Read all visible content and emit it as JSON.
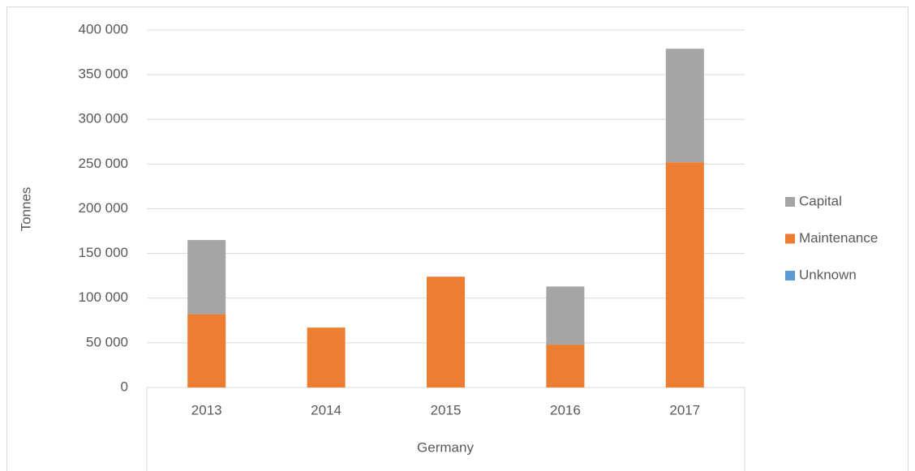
{
  "chart_data": {
    "type": "stacked_bar",
    "y_label": "Tonnes",
    "x_label": "Germany",
    "categories": [
      "2013",
      "2014",
      "2015",
      "2016",
      "2017"
    ],
    "series": [
      {
        "name": "Capital",
        "color": "#a5a5a5",
        "values": [
          83000,
          0,
          0,
          65000,
          127000
        ]
      },
      {
        "name": "Maintenance",
        "color": "#ed7d31",
        "values": [
          82000,
          67000,
          124000,
          48000,
          252000
        ]
      },
      {
        "name": "Unknown",
        "color": "#5b9bd5",
        "values": [
          0,
          0,
          0,
          0,
          0
        ]
      }
    ],
    "ylim": [
      0,
      400000
    ],
    "yticks": [
      0,
      {
        "value": 50000,
        "label": "50 000"
      },
      {
        "value": 100000,
        "label": "100 000"
      },
      {
        "value": 150000,
        "label": "150 000"
      },
      {
        "value": 200000,
        "label": "200 000"
      },
      {
        "value": 250000,
        "label": "250 000"
      },
      {
        "value": 300000,
        "label": "300 000"
      },
      {
        "value": 350000,
        "label": "350 000"
      },
      {
        "value": 400000,
        "label": "400 000"
      }
    ],
    "grid": true,
    "legend": "right"
  }
}
